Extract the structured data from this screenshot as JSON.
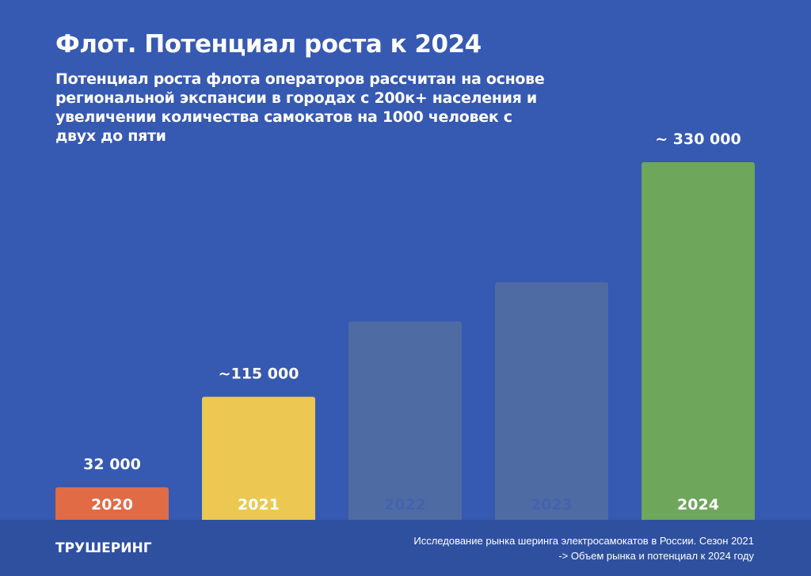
{
  "title": "Флот. Потенциал роста к 2024",
  "subtitle": "Потенциал роста флота операторов рассчитан на основе региональной экспансии в городах с 200к+ населения и увеличении количества самокатов на 1000 человек с двух до пяти",
  "chart_data": {
    "type": "bar",
    "categories": [
      "2020",
      "2021",
      "2022",
      "2023",
      "2024"
    ],
    "values": [
      32000,
      115000,
      184000,
      220000,
      330000
    ],
    "data_labels": [
      "32 000",
      "~115 000",
      "",
      "",
      "~ 330 000"
    ],
    "colors": [
      "#e06b45",
      "#ecc852",
      "#4f6ba3",
      "#4f6ba3",
      "#6ea65b"
    ],
    "ylim": [
      0,
      330000
    ],
    "grid": false,
    "legend": "none"
  },
  "footer": {
    "brand": "ТРУШЕРИНГ",
    "source_line1": "Исследование рынка шеринга электросамокатов в России. Сезон 2021",
    "source_line2": "-> Объем рынка и потенциал к 2024 году"
  }
}
